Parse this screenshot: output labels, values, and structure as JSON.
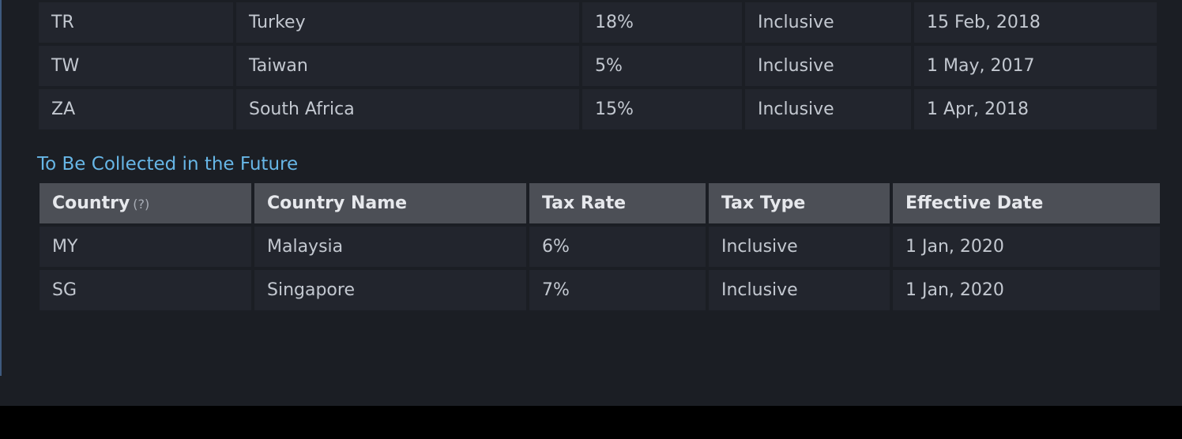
{
  "top_table": {
    "rows": [
      {
        "code": "TR",
        "name": "Turkey",
        "rate": "18%",
        "type": "Inclusive",
        "date": "15 Feb, 2018"
      },
      {
        "code": "TW",
        "name": "Taiwan",
        "rate": "5%",
        "type": "Inclusive",
        "date": "1 May, 2017"
      },
      {
        "code": "ZA",
        "name": "South Africa",
        "rate": "15%",
        "type": "Inclusive",
        "date": "1 Apr, 2018"
      }
    ]
  },
  "future": {
    "title": "To Be Collected in the Future",
    "headers": {
      "country": "Country",
      "country_hint": "(?)",
      "country_name": "Country Name",
      "tax_rate": "Tax Rate",
      "tax_type": "Tax Type",
      "effective_date": "Effective Date"
    },
    "rows": [
      {
        "code": "MY",
        "name": "Malaysia",
        "rate": "6%",
        "type": "Inclusive",
        "date": "1 Jan, 2020"
      },
      {
        "code": "SG",
        "name": "Singapore",
        "rate": "7%",
        "type": "Inclusive",
        "date": "1 Jan, 2020"
      }
    ]
  }
}
